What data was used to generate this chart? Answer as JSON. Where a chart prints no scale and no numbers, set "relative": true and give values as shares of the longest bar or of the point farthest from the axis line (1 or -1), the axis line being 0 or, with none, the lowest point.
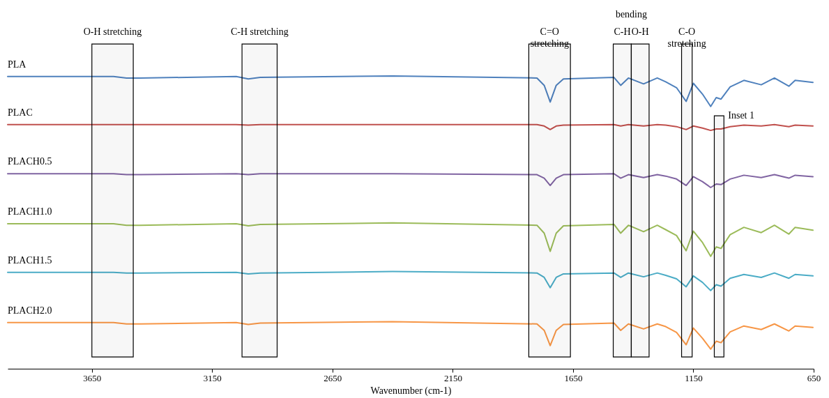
{
  "chart_data": {
    "type": "line",
    "relative": true,
    "xlabel": "Wavenumber (cm-1)",
    "xlim": [
      4000,
      650
    ],
    "xticks": [
      3650,
      3150,
      2650,
      2150,
      1650,
      1150,
      650
    ],
    "grid": false,
    "legend": false,
    "marker": "none",
    "x": [
      4000,
      3560,
      3506,
      3450,
      3050,
      3000,
      2950,
      2400,
      1800,
      1770,
      1745,
      1720,
      1690,
      1480,
      1452,
      1420,
      1357,
      1300,
      1265,
      1220,
      1180,
      1150,
      1112,
      1078,
      1055,
      1035,
      997,
      940,
      868,
      813,
      753,
      727,
      653
    ],
    "series": [
      {
        "name": "PLA",
        "color": "#4f81bd",
        "values": [
          0.998,
          0.998,
          0.993,
          0.993,
          0.998,
          0.99,
          0.995,
          1.0,
          0.993,
          0.968,
          0.911,
          0.968,
          0.99,
          0.995,
          0.968,
          0.993,
          0.973,
          0.993,
          0.98,
          0.96,
          0.913,
          0.975,
          0.938,
          0.896,
          0.926,
          0.921,
          0.963,
          0.985,
          0.97,
          0.993,
          0.965,
          0.985,
          0.978
        ]
      },
      {
        "name": "PLAC",
        "color": "#c0504d",
        "values": [
          0.834,
          0.834,
          0.834,
          0.834,
          0.834,
          0.832,
          0.834,
          0.834,
          0.834,
          0.829,
          0.817,
          0.829,
          0.832,
          0.834,
          0.829,
          0.834,
          0.829,
          0.834,
          0.832,
          0.827,
          0.817,
          0.829,
          0.822,
          0.814,
          0.819,
          0.819,
          0.827,
          0.832,
          0.829,
          0.834,
          0.827,
          0.832,
          0.829
        ]
      },
      {
        "name": "PLACH0.5",
        "color": "#8064a2",
        "values": [
          0.666,
          0.666,
          0.663,
          0.663,
          0.666,
          0.663,
          0.666,
          0.666,
          0.663,
          0.651,
          0.626,
          0.651,
          0.663,
          0.666,
          0.651,
          0.663,
          0.653,
          0.663,
          0.658,
          0.648,
          0.626,
          0.656,
          0.639,
          0.619,
          0.631,
          0.629,
          0.648,
          0.661,
          0.653,
          0.663,
          0.651,
          0.661,
          0.656
        ]
      },
      {
        "name": "PLACH1.0",
        "color": "#9bbb59",
        "values": [
          0.495,
          0.495,
          0.49,
          0.49,
          0.495,
          0.488,
          0.493,
          0.498,
          0.49,
          0.463,
          0.401,
          0.463,
          0.488,
          0.493,
          0.463,
          0.49,
          0.468,
          0.49,
          0.475,
          0.455,
          0.403,
          0.47,
          0.431,
          0.384,
          0.416,
          0.411,
          0.458,
          0.483,
          0.465,
          0.49,
          0.46,
          0.483,
          0.473
        ]
      },
      {
        "name": "PLACH1.5",
        "color": "#4bacc6",
        "values": [
          0.329,
          0.329,
          0.327,
          0.327,
          0.329,
          0.324,
          0.327,
          0.332,
          0.327,
          0.312,
          0.277,
          0.312,
          0.324,
          0.327,
          0.312,
          0.327,
          0.314,
          0.327,
          0.319,
          0.307,
          0.28,
          0.317,
          0.295,
          0.267,
          0.287,
          0.282,
          0.309,
          0.322,
          0.312,
          0.327,
          0.309,
          0.322,
          0.317
        ]
      },
      {
        "name": "PLACH2.0",
        "color": "#f79646",
        "values": [
          0.158,
          0.158,
          0.153,
          0.153,
          0.158,
          0.151,
          0.156,
          0.161,
          0.153,
          0.131,
          0.079,
          0.131,
          0.151,
          0.156,
          0.131,
          0.153,
          0.136,
          0.153,
          0.144,
          0.124,
          0.082,
          0.139,
          0.104,
          0.067,
          0.094,
          0.089,
          0.126,
          0.146,
          0.134,
          0.153,
          0.129,
          0.146,
          0.141
        ]
      }
    ],
    "bands": [
      {
        "axis": "x",
        "from": 3650,
        "to": 3478,
        "label": "O-H stretching"
      },
      {
        "axis": "x",
        "from": 3026,
        "to": 2880,
        "label": "C-H stretching"
      },
      {
        "axis": "x",
        "from": 1834,
        "to": 1661,
        "label": "C=O\nstretching"
      },
      {
        "axis": "x",
        "from": 1483,
        "to": 1408,
        "label": "C-H"
      },
      {
        "axis": "x",
        "from": 1408,
        "to": 1334,
        "label": "O-H"
      },
      {
        "axis": "x",
        "from": 1199,
        "to": 1155,
        "label": "C-O\nstretching"
      },
      {
        "axis": "x",
        "from": 1063,
        "to": 1023,
        "label": "Inset 1"
      }
    ],
    "annotations": [
      "bending"
    ]
  }
}
